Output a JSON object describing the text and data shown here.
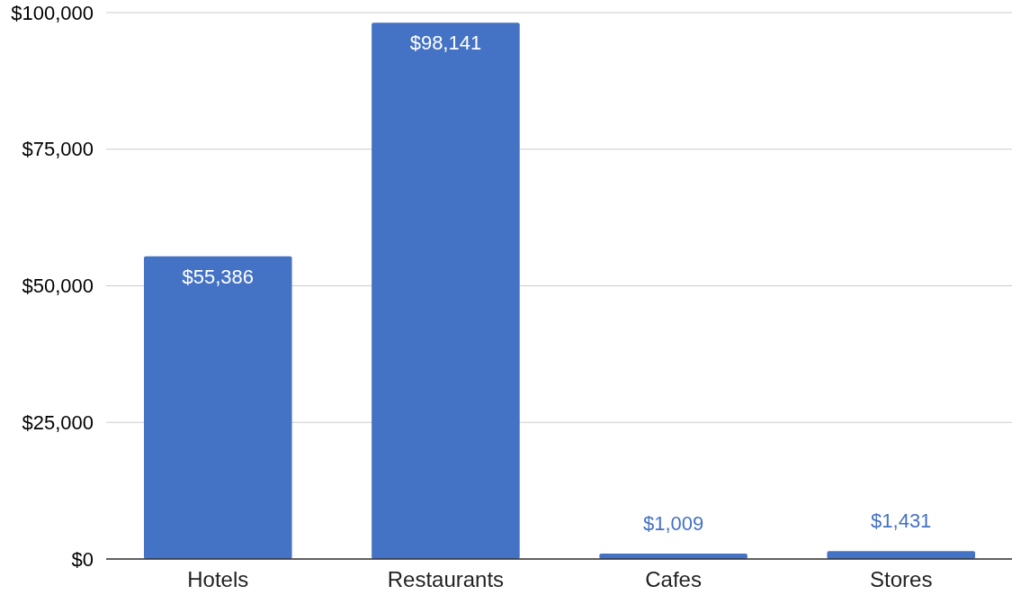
{
  "chart_data": {
    "type": "bar",
    "categories": [
      "Hotels",
      "Restaurants",
      "Cafes",
      "Stores"
    ],
    "values": [
      55386,
      98141,
      1009,
      1431
    ],
    "value_labels": [
      "$55,386",
      "$98,141",
      "$1,009",
      "$1,431"
    ],
    "color": "#4472c4",
    "ylim": [
      0,
      100000
    ],
    "yticks": [
      {
        "value": 0,
        "label": "$0"
      },
      {
        "value": 25000,
        "label": "$25,000"
      },
      {
        "value": 50000,
        "label": "$50,000"
      },
      {
        "value": 75000,
        "label": "$75,000"
      },
      {
        "value": 100000,
        "label": "$100,000"
      }
    ],
    "grid": "y"
  }
}
